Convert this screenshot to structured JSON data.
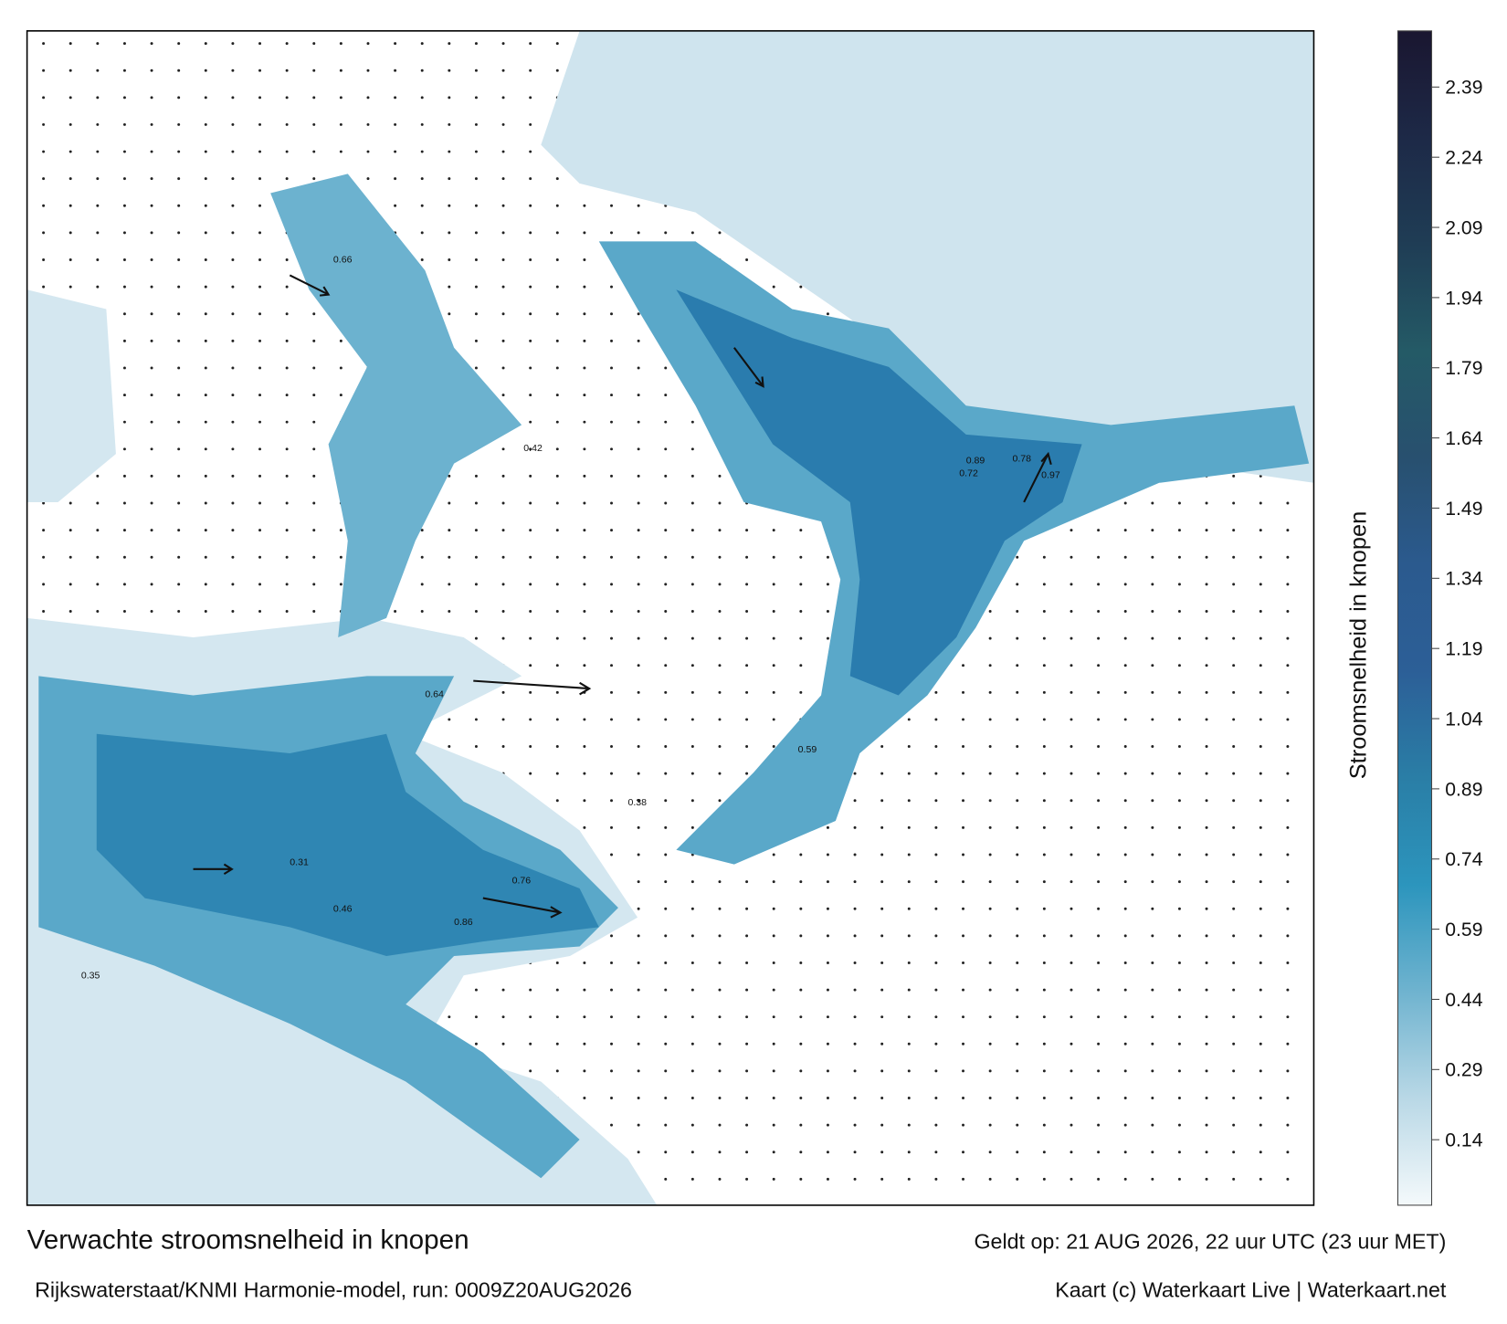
{
  "map": {
    "title": "Verwachte stroomsnelheid in knopen",
    "subtitle": "Rijkswaterstaat/KNMI Harmonie-model, run: 0009Z20AUG2026",
    "valid_time": "Geldt op: 21 AUG 2026, 22 uur UTC (23 uur MET)",
    "credit": "Kaart (c) Waterkaart Live | Waterkaart.net",
    "colorbar": {
      "label": "Stroomsnelheid in knopen",
      "lim": [
        0,
        2.51
      ],
      "ticks": [
        0.14,
        0.29,
        0.44,
        0.59,
        0.74,
        0.89,
        1.04,
        1.19,
        1.34,
        1.49,
        1.64,
        1.79,
        1.94,
        2.09,
        2.24,
        2.39
      ],
      "colors": [
        "#f4f9fb",
        "#b9d8e6",
        "#6fb3cf",
        "#2c95bd",
        "#2a7ea6",
        "#2c5f97",
        "#2b5a8e",
        "#28506f",
        "#245a66",
        "#1f3d55",
        "#1d2947",
        "#1a1630"
      ]
    },
    "labels": [
      0.66,
      0.72,
      0.89,
      0.97,
      0.78,
      0.86,
      0.64,
      0.76,
      0.59,
      0.42,
      0.38,
      0.35,
      0.31,
      0.46
    ]
  }
}
